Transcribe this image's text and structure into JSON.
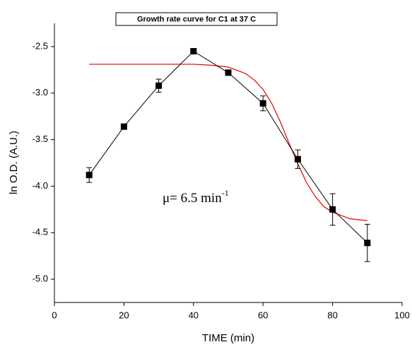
{
  "chart_data": {
    "type": "line",
    "title": "Growth rate curve for C1 at 37 C",
    "x_label": "TIME (min)",
    "y_label": "ln O.D. (A.U.)",
    "annotation": {
      "text": "μ= 6.5 min",
      "superscript": "-1"
    },
    "x": [
      10,
      20,
      30,
      40,
      50,
      60,
      70,
      80,
      90
    ],
    "series": [
      {
        "color": "#000000",
        "values": [
          -3.88,
          -3.36,
          -2.92,
          -2.55,
          -2.78,
          -3.11,
          -3.71,
          -4.25,
          -4.61
        ],
        "errors": [
          0.08,
          0.02,
          0.07,
          0.02,
          0.02,
          0.08,
          0.1,
          0.17,
          0.2
        ]
      },
      {
        "color": "#e00000",
        "x": [
          10,
          20,
          30,
          40,
          45,
          50,
          55,
          57.5,
          60,
          62.5,
          65,
          67.5,
          70,
          72.5,
          75,
          77.5,
          80,
          85,
          90
        ],
        "values": [
          -2.69,
          -2.69,
          -2.69,
          -2.69,
          -2.7,
          -2.72,
          -2.79,
          -2.86,
          -2.96,
          -3.11,
          -3.31,
          -3.54,
          -3.76,
          -3.96,
          -4.11,
          -4.22,
          -4.28,
          -4.35,
          -4.37
        ]
      }
    ],
    "xlim": [
      0,
      100
    ],
    "xticks": [
      0,
      20,
      40,
      60,
      80,
      100
    ],
    "ylim": [
      -5.25,
      -2.25
    ],
    "yticks": [
      -2.5,
      {
        "value": -3,
        "label": "-3.0"
      },
      -3.5,
      {
        "value": -4,
        "label": "-4.0"
      },
      -4.5,
      {
        "value": -5,
        "label": "-5.0"
      }
    ]
  }
}
